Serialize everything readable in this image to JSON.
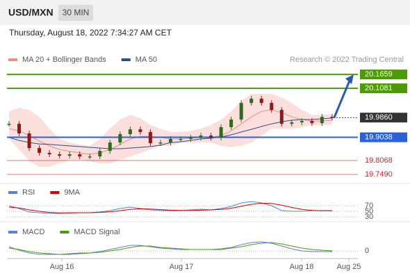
{
  "header": {
    "symbol": "USD/MXN",
    "timeframe": "30 MIN",
    "timestamp": "Thursday, August 18, 2022 7:34:27 AM CET",
    "credit": "Research © 2022 Trading Central"
  },
  "chart_data": [
    {
      "type": "candlestick",
      "up_color": "#2e6b1f",
      "down_color": "#8b1c1c",
      "close": [
        19.96,
        19.92,
        19.859,
        19.839,
        19.833,
        19.827,
        19.833,
        19.824,
        19.824,
        19.847,
        19.882,
        19.917,
        19.937,
        19.926,
        19.879,
        19.882,
        19.897,
        19.897,
        19.902,
        19.911,
        19.902,
        19.946,
        19.978,
        20.047,
        20.065,
        20.047,
        20.018,
        19.96,
        19.966,
        19.972,
        19.963,
        19.989,
        19.986
      ],
      "series": [
        {
          "name": "MA 20 + Bollinger Bands",
          "color": "#f28b82",
          "values": [
            19.94,
            19.931,
            19.911,
            19.888,
            19.868,
            19.853,
            19.845,
            19.839,
            19.833,
            19.839,
            19.853,
            19.874,
            19.897,
            19.908,
            19.908,
            19.903,
            19.897,
            19.897,
            19.9,
            19.903,
            19.903,
            19.911,
            19.931,
            19.96,
            19.989,
            20.012,
            20.018,
            20.007,
            19.989,
            19.978,
            19.972,
            19.972,
            19.975
          ],
          "upper": [
            20.012,
            20.027,
            20.018,
            19.989,
            19.94,
            19.897,
            19.882,
            19.874,
            19.868,
            19.897,
            19.94,
            19.978,
            19.998,
            19.984,
            19.955,
            19.94,
            19.926,
            19.926,
            19.931,
            19.94,
            19.955,
            19.978,
            20.012,
            20.056,
            20.085,
            20.085,
            20.085,
            20.07,
            20.047,
            20.018,
            19.998,
            19.998,
            20.001
          ],
          "lower": [
            19.897,
            19.853,
            19.804,
            19.781,
            19.781,
            19.795,
            19.81,
            19.81,
            19.804,
            19.795,
            19.795,
            19.81,
            19.824,
            19.839,
            19.853,
            19.868,
            19.868,
            19.882,
            19.882,
            19.882,
            19.882,
            19.868,
            19.862,
            19.868,
            19.882,
            19.911,
            19.94,
            19.94,
            19.94,
            19.946,
            19.955,
            19.955,
            19.955
          ]
        },
        {
          "name": "MA 50",
          "color": "#2f4d8a",
          "values": [
            19.903,
            19.891,
            19.882,
            19.876,
            19.874,
            19.871,
            19.868,
            19.865,
            19.862,
            19.859,
            19.856,
            19.856,
            19.859,
            19.862,
            19.865,
            19.871,
            19.882,
            19.885,
            19.891,
            19.897,
            19.9,
            19.905,
            19.914,
            19.926,
            19.937,
            19.949,
            19.96,
            19.969,
            19.975,
            19.978,
            19.978,
            19.981,
            19.984
          ]
        }
      ],
      "levels": [
        {
          "value": 20.1659,
          "label": "20.1659",
          "color": "#4e9a06",
          "style": "box"
        },
        {
          "value": 20.1081,
          "label": "20.1081",
          "color": "#4e9a06",
          "style": "box"
        },
        {
          "value": 19.986,
          "label": "19.9860",
          "color": "#333333",
          "style": "current"
        },
        {
          "value": 19.9038,
          "label": "19.9038",
          "color": "#2962d9",
          "style": "box"
        },
        {
          "value": 19.8068,
          "label": "19.8068",
          "color": "#d62020",
          "style": "text"
        },
        {
          "value": 19.749,
          "label": "19.7490",
          "color": "#d62020",
          "style": "text"
        }
      ],
      "arrow_color": "#2b5aa8",
      "ylim": [
        19.717,
        20.288
      ]
    },
    {
      "type": "line",
      "series": [
        {
          "name": "RSI",
          "color": "#5b7fd6",
          "values": [
            70,
            60,
            47.5,
            45,
            42.5,
            42.5,
            45,
            45,
            45,
            47.5,
            52.5,
            60,
            65,
            60,
            55,
            52.5,
            52.5,
            52.5,
            55,
            57.5,
            55,
            60,
            67.5,
            80,
            85,
            80,
            70,
            52.5,
            50,
            50,
            52.5,
            52.5,
            52.5
          ]
        },
        {
          "name": "9MA",
          "color": "#d40000",
          "values": [
            65,
            62,
            55,
            50,
            46,
            44,
            44,
            45,
            45,
            46,
            48,
            52,
            57,
            59,
            58,
            56,
            54,
            53,
            53,
            54,
            55,
            57,
            61,
            68,
            75,
            79,
            78,
            72,
            64,
            57,
            53,
            52,
            52
          ]
        }
      ],
      "ylim": [
        15,
        97.5
      ],
      "yticks": [
        30,
        50,
        70
      ]
    },
    {
      "type": "line",
      "series": [
        {
          "name": "MACD",
          "color": "#5b7fd6",
          "values": [
            0.006,
            0.001,
            -0.003,
            -0.005,
            -0.005,
            -0.005,
            -0.004,
            -0.003,
            -0.003,
            -0.001,
            0.002,
            0.005,
            0.008,
            0.008,
            0.006,
            0.004,
            0.003,
            0.002,
            0.002,
            0.002,
            0.002,
            0.003,
            0.005,
            0.009,
            0.012,
            0.013,
            0.011,
            0.007,
            0.003,
            0,
            -0.001,
            -0.001,
            -0.001
          ]
        },
        {
          "name": "MACD Signal",
          "color": "#4e9a06",
          "values": [
            0.004,
            0.002,
            -0.001,
            -0.003,
            -0.004,
            -0.005,
            -0.005,
            -0.004,
            -0.003,
            -0.002,
            0,
            0.002,
            0.005,
            0.007,
            0.007,
            0.005,
            0.004,
            0.003,
            0.002,
            0.002,
            0.002,
            0.002,
            0.004,
            0.006,
            0.009,
            0.011,
            0.012,
            0.01,
            0.007,
            0.004,
            0.002,
            0.001,
            0
          ]
        }
      ],
      "ylim": [
        -0.011,
        0.026
      ],
      "yticks": [
        0
      ],
      "x_labels": [
        "Aug 16",
        "Aug 17",
        "Aug 18",
        "Aug 25"
      ]
    }
  ]
}
